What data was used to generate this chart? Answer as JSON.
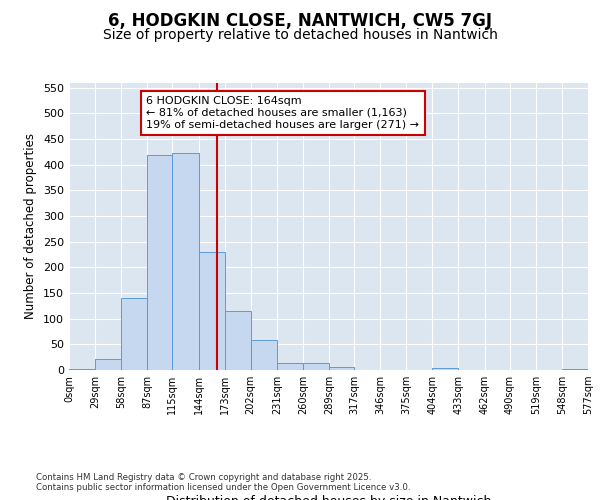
{
  "title1": "6, HODGKIN CLOSE, NANTWICH, CW5 7GJ",
  "title2": "Size of property relative to detached houses in Nantwich",
  "xlabel": "Distribution of detached houses by size in Nantwich",
  "ylabel": "Number of detached properties",
  "bar_edges": [
    0,
    29,
    58,
    87,
    115,
    144,
    173,
    202,
    231,
    260,
    289,
    317,
    346,
    375,
    404,
    433,
    462,
    490,
    519,
    548,
    577
  ],
  "bar_heights": [
    2,
    22,
    140,
    418,
    422,
    230,
    115,
    58,
    13,
    13,
    5,
    0,
    0,
    0,
    3,
    0,
    0,
    0,
    0,
    2
  ],
  "bar_color": "#c5d8ef",
  "bar_edge_color": "#5b9bd5",
  "vline_x": 164,
  "vline_color": "#cc0000",
  "annotation_text": "6 HODGKIN CLOSE: 164sqm\n← 81% of detached houses are smaller (1,163)\n19% of semi-detached houses are larger (271) →",
  "annotation_box_color": "#ffffff",
  "annotation_box_edge": "#cc0000",
  "ylim": [
    0,
    560
  ],
  "yticks": [
    0,
    50,
    100,
    150,
    200,
    250,
    300,
    350,
    400,
    450,
    500,
    550
  ],
  "plot_bg_color": "#dce6f1",
  "fig_bg_color": "#ffffff",
  "footer": "Contains HM Land Registry data © Crown copyright and database right 2025.\nContains public sector information licensed under the Open Government Licence v3.0.",
  "title1_fontsize": 12,
  "title2_fontsize": 10,
  "annotation_fontsize": 8
}
